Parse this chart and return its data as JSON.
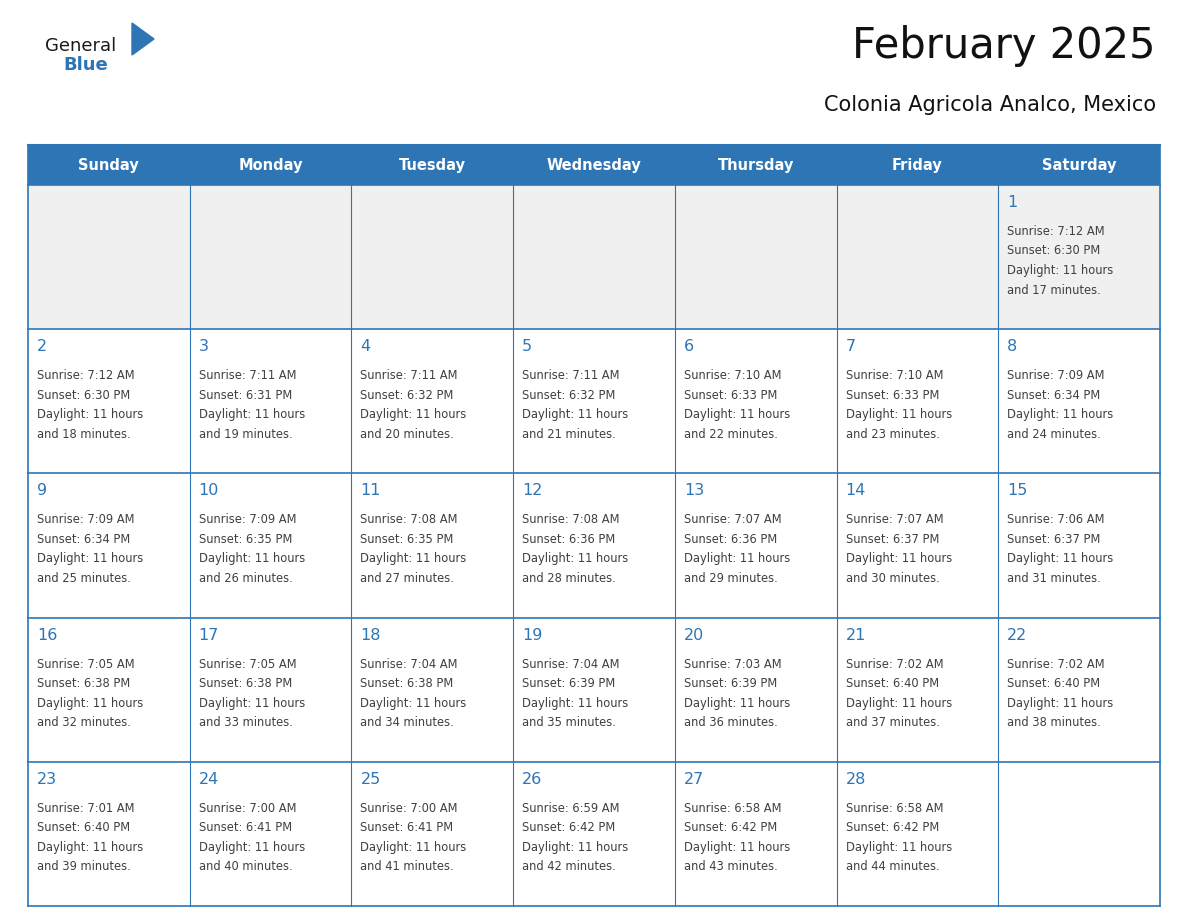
{
  "title": "February 2025",
  "subtitle": "Colonia Agricola Analco, Mexico",
  "header_bg": "#2E75B6",
  "header_text_color": "#FFFFFF",
  "cell_border_color": "#2E75B6",
  "day_number_color": "#2E75B6",
  "info_text_color": "#404040",
  "background_color": "#FFFFFF",
  "first_row_bg": "#f0f0f0",
  "logo_general_color": "#1a1a1a",
  "logo_blue_color": "#2E75B6",
  "logo_triangle_color": "#2E75B6",
  "days_of_week": [
    "Sunday",
    "Monday",
    "Tuesday",
    "Wednesday",
    "Thursday",
    "Friday",
    "Saturday"
  ],
  "calendar_data": [
    [
      null,
      null,
      null,
      null,
      null,
      null,
      {
        "day": 1,
        "sunrise": "7:12 AM",
        "sunset": "6:30 PM",
        "daylight_h": "11 hours",
        "daylight_m": "and 17 minutes."
      }
    ],
    [
      {
        "day": 2,
        "sunrise": "7:12 AM",
        "sunset": "6:30 PM",
        "daylight_h": "11 hours",
        "daylight_m": "and 18 minutes."
      },
      {
        "day": 3,
        "sunrise": "7:11 AM",
        "sunset": "6:31 PM",
        "daylight_h": "11 hours",
        "daylight_m": "and 19 minutes."
      },
      {
        "day": 4,
        "sunrise": "7:11 AM",
        "sunset": "6:32 PM",
        "daylight_h": "11 hours",
        "daylight_m": "and 20 minutes."
      },
      {
        "day": 5,
        "sunrise": "7:11 AM",
        "sunset": "6:32 PM",
        "daylight_h": "11 hours",
        "daylight_m": "and 21 minutes."
      },
      {
        "day": 6,
        "sunrise": "7:10 AM",
        "sunset": "6:33 PM",
        "daylight_h": "11 hours",
        "daylight_m": "and 22 minutes."
      },
      {
        "day": 7,
        "sunrise": "7:10 AM",
        "sunset": "6:33 PM",
        "daylight_h": "11 hours",
        "daylight_m": "and 23 minutes."
      },
      {
        "day": 8,
        "sunrise": "7:09 AM",
        "sunset": "6:34 PM",
        "daylight_h": "11 hours",
        "daylight_m": "and 24 minutes."
      }
    ],
    [
      {
        "day": 9,
        "sunrise": "7:09 AM",
        "sunset": "6:34 PM",
        "daylight_h": "11 hours",
        "daylight_m": "and 25 minutes."
      },
      {
        "day": 10,
        "sunrise": "7:09 AM",
        "sunset": "6:35 PM",
        "daylight_h": "11 hours",
        "daylight_m": "and 26 minutes."
      },
      {
        "day": 11,
        "sunrise": "7:08 AM",
        "sunset": "6:35 PM",
        "daylight_h": "11 hours",
        "daylight_m": "and 27 minutes."
      },
      {
        "day": 12,
        "sunrise": "7:08 AM",
        "sunset": "6:36 PM",
        "daylight_h": "11 hours",
        "daylight_m": "and 28 minutes."
      },
      {
        "day": 13,
        "sunrise": "7:07 AM",
        "sunset": "6:36 PM",
        "daylight_h": "11 hours",
        "daylight_m": "and 29 minutes."
      },
      {
        "day": 14,
        "sunrise": "7:07 AM",
        "sunset": "6:37 PM",
        "daylight_h": "11 hours",
        "daylight_m": "and 30 minutes."
      },
      {
        "day": 15,
        "sunrise": "7:06 AM",
        "sunset": "6:37 PM",
        "daylight_h": "11 hours",
        "daylight_m": "and 31 minutes."
      }
    ],
    [
      {
        "day": 16,
        "sunrise": "7:05 AM",
        "sunset": "6:38 PM",
        "daylight_h": "11 hours",
        "daylight_m": "and 32 minutes."
      },
      {
        "day": 17,
        "sunrise": "7:05 AM",
        "sunset": "6:38 PM",
        "daylight_h": "11 hours",
        "daylight_m": "and 33 minutes."
      },
      {
        "day": 18,
        "sunrise": "7:04 AM",
        "sunset": "6:38 PM",
        "daylight_h": "11 hours",
        "daylight_m": "and 34 minutes."
      },
      {
        "day": 19,
        "sunrise": "7:04 AM",
        "sunset": "6:39 PM",
        "daylight_h": "11 hours",
        "daylight_m": "and 35 minutes."
      },
      {
        "day": 20,
        "sunrise": "7:03 AM",
        "sunset": "6:39 PM",
        "daylight_h": "11 hours",
        "daylight_m": "and 36 minutes."
      },
      {
        "day": 21,
        "sunrise": "7:02 AM",
        "sunset": "6:40 PM",
        "daylight_h": "11 hours",
        "daylight_m": "and 37 minutes."
      },
      {
        "day": 22,
        "sunrise": "7:02 AM",
        "sunset": "6:40 PM",
        "daylight_h": "11 hours",
        "daylight_m": "and 38 minutes."
      }
    ],
    [
      {
        "day": 23,
        "sunrise": "7:01 AM",
        "sunset": "6:40 PM",
        "daylight_h": "11 hours",
        "daylight_m": "and 39 minutes."
      },
      {
        "day": 24,
        "sunrise": "7:00 AM",
        "sunset": "6:41 PM",
        "daylight_h": "11 hours",
        "daylight_m": "and 40 minutes."
      },
      {
        "day": 25,
        "sunrise": "7:00 AM",
        "sunset": "6:41 PM",
        "daylight_h": "11 hours",
        "daylight_m": "and 41 minutes."
      },
      {
        "day": 26,
        "sunrise": "6:59 AM",
        "sunset": "6:42 PM",
        "daylight_h": "11 hours",
        "daylight_m": "and 42 minutes."
      },
      {
        "day": 27,
        "sunrise": "6:58 AM",
        "sunset": "6:42 PM",
        "daylight_h": "11 hours",
        "daylight_m": "and 43 minutes."
      },
      {
        "day": 28,
        "sunrise": "6:58 AM",
        "sunset": "6:42 PM",
        "daylight_h": "11 hours",
        "daylight_m": "and 44 minutes."
      },
      null
    ]
  ]
}
